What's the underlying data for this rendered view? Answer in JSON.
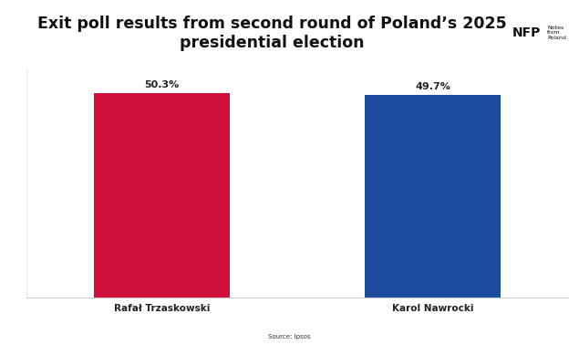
{
  "chart_data": {
    "type": "bar",
    "title": "Exit poll results from second round of Poland’s 2025 presidential election",
    "categories": [
      "Rafał Trzaskowski",
      "Karol Nawrocki"
    ],
    "values": [
      50.3,
      49.7
    ],
    "value_labels": [
      "50.3%",
      "49.7%"
    ],
    "colors": [
      "#d0103a",
      "#1a4a9c"
    ],
    "ylim": [
      0,
      56
    ],
    "yticks": [
      0
    ],
    "data_labels": true,
    "tick_labels": "x",
    "grid": false,
    "annotations": [
      "Source: Ipsos",
      "NFP",
      "Notes from Poland"
    ]
  }
}
